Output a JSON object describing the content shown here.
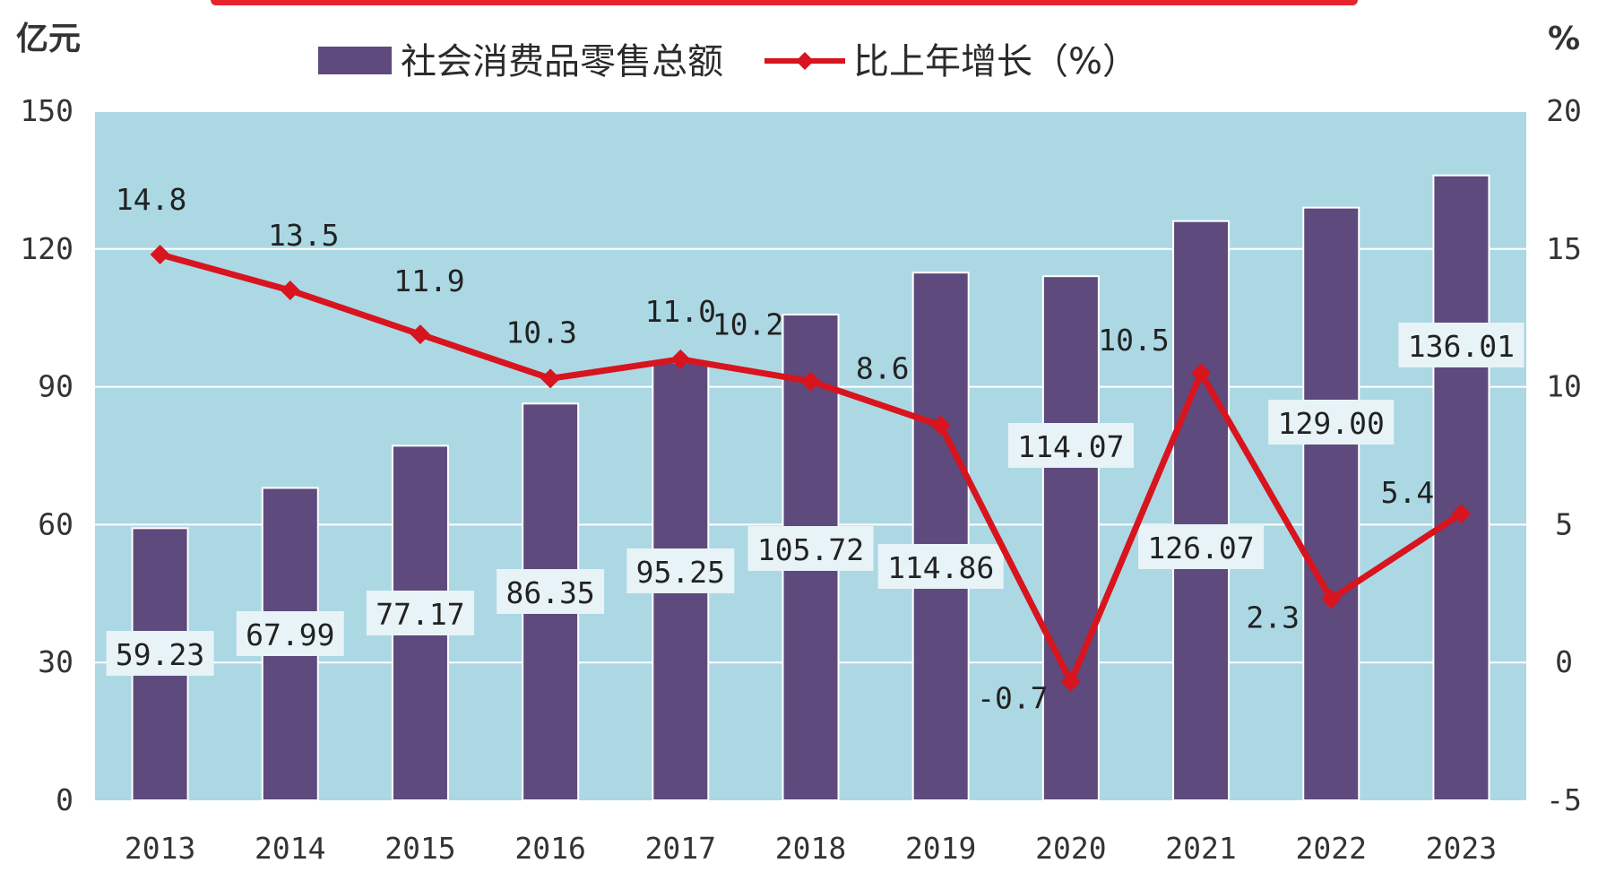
{
  "colors": {
    "plot_bg": "#acd8e4",
    "bar": "#5e4a7c",
    "line": "#d8141e",
    "grid": "#ffffff",
    "label_box": "#e7f3f7"
  },
  "chart_data": {
    "type": "bar+line",
    "categories": [
      "2013",
      "2014",
      "2015",
      "2016",
      "2017",
      "2018",
      "2019",
      "2020",
      "2021",
      "2022",
      "2023"
    ],
    "series": [
      {
        "name": "社会消费品零售总额",
        "type": "bar",
        "axis": "left",
        "values": [
          59.23,
          67.99,
          77.17,
          86.35,
          95.25,
          105.72,
          114.86,
          114.07,
          126.07,
          129.0,
          136.01
        ],
        "labels": [
          "59.23",
          "67.99",
          "77.17",
          "86.35",
          "95.25",
          "105.72",
          "114.86",
          "114.07",
          "126.07",
          "129.00",
          "136.01"
        ]
      },
      {
        "name": "比上年增长（%）",
        "type": "line",
        "axis": "right",
        "values": [
          14.8,
          13.5,
          11.9,
          10.3,
          11.0,
          10.2,
          8.6,
          -0.7,
          10.5,
          2.3,
          5.4
        ],
        "labels": [
          "14.8",
          "13.5",
          "11.9",
          "10.3",
          "11.0",
          "10.2",
          "8.6",
          "-0.7",
          "10.5",
          "2.3",
          "5.4"
        ]
      }
    ],
    "y_left": {
      "unit": "亿元",
      "ylim": [
        0,
        150
      ],
      "ticks": [
        "0",
        "30",
        "60",
        "90",
        "120",
        "150"
      ]
    },
    "y_right": {
      "unit": "%",
      "ylim": [
        -5,
        20
      ],
      "ticks": [
        "-5",
        "0",
        "5",
        "10",
        "15",
        "20"
      ]
    },
    "grid": true,
    "legend_position": "top"
  }
}
